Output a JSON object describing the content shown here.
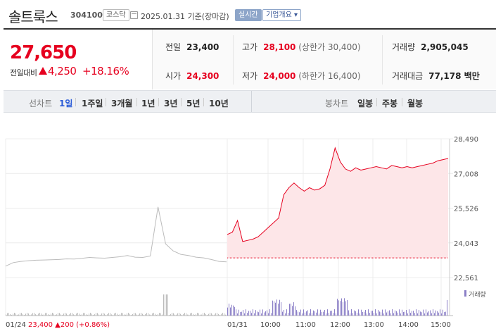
{
  "header": {
    "name": "솔트룩스",
    "code": "304100",
    "market": "코스닥",
    "date_text": "2025.01.31 기준(장마감)",
    "live_label": "실시간",
    "company_info_label": "기업개요 ▾"
  },
  "price": {
    "current": "27,650",
    "vs_label": "전일대비",
    "change": "4,250",
    "change_pct": "+18.16%"
  },
  "stats": {
    "prev_label": "전일",
    "prev": "23,400",
    "open_label": "시가",
    "open": "24,300",
    "high_label": "고가",
    "high": "28,100",
    "upper_limit": "(상한가 30,400)",
    "low_label": "저가",
    "low": "24,000",
    "lower_limit": "(하한가 16,400)",
    "volume_label": "거래량",
    "volume": "2,905,045",
    "amount_label": "거래대금",
    "amount": "77,178 백만"
  },
  "periods": {
    "line_label": "선차트",
    "line_items": [
      "1일",
      "1주일",
      "3개월",
      "1년",
      "3년",
      "5년",
      "10년"
    ],
    "active": "1일",
    "candle_label": "봉차트",
    "candle_items": [
      "일봉",
      "주봉",
      "월봉"
    ]
  },
  "colors": {
    "up": "#e6001f",
    "volume": "#8b7fc7",
    "prev_line": "#bbbbbb"
  },
  "chart_data": {
    "type": "line",
    "y_ticks": [
      "28,490",
      "27,008",
      "25,526",
      "24,043",
      "22,561"
    ],
    "x_ticks": [
      "01/24",
      "01/31",
      "10:00",
      "11:00",
      "12:00",
      "13:00",
      "14:00",
      "15:00"
    ],
    "ylim": [
      22561,
      28490
    ],
    "volume_label": "거래량",
    "prev_day_summary": {
      "date": "01/24",
      "close": "23,400",
      "change": "200",
      "change_pct": "(+0.86%)"
    },
    "prev_day_series": {
      "y": [
        23050,
        23200,
        23250,
        23280,
        23300,
        23310,
        23320,
        23330,
        23360,
        23350,
        23380,
        23420,
        23400,
        23390,
        23420,
        23450,
        23500,
        23430,
        23420,
        23480,
        25580,
        24000,
        23700,
        23550,
        23500,
        23430,
        23400,
        23330,
        23250,
        23230
      ]
    },
    "today_series": {
      "time": [
        "09:00",
        "09:05",
        "09:10",
        "09:20",
        "09:30",
        "09:40",
        "09:50",
        "10:00",
        "10:10",
        "10:15",
        "10:20",
        "10:30",
        "10:40",
        "10:50",
        "11:00",
        "11:10",
        "11:20",
        "11:30",
        "11:40",
        "11:50",
        "11:55",
        "12:00",
        "12:05",
        "12:10",
        "12:20",
        "12:30",
        "12:40",
        "12:50",
        "13:00",
        "13:10",
        "13:20",
        "13:30",
        "13:40",
        "13:50",
        "14:00",
        "14:10",
        "14:20",
        "14:30",
        "14:40",
        "14:50",
        "15:00",
        "15:10",
        "15:20",
        "15:30"
      ],
      "price": [
        24400,
        24500,
        25000,
        24100,
        24150,
        24200,
        24300,
        24500,
        24700,
        24900,
        25100,
        26100,
        26400,
        26600,
        26400,
        26250,
        26400,
        26300,
        26350,
        26500,
        27200,
        28100,
        27500,
        27200,
        27100,
        27250,
        27150,
        27200,
        27250,
        27300,
        27250,
        27200,
        27350,
        27300,
        27250,
        27300,
        27250,
        27300,
        27350,
        27400,
        27450,
        27550,
        27600,
        27650
      ]
    }
  }
}
